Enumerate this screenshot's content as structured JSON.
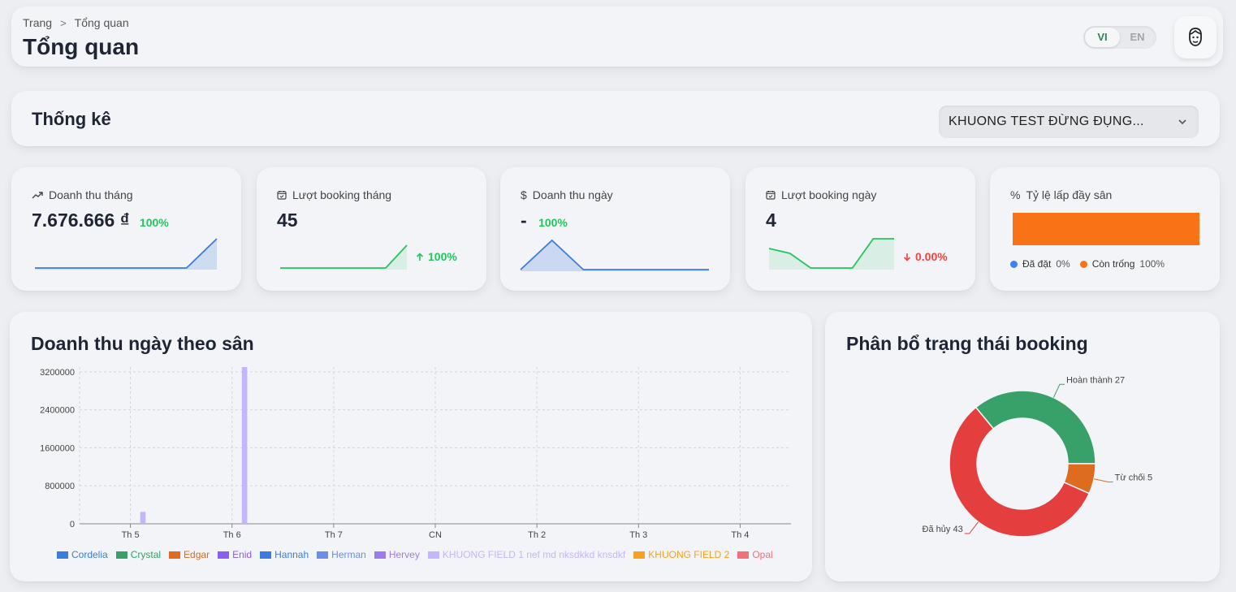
{
  "header": {
    "breadcrumb": [
      "Trang",
      "Tổng quan"
    ],
    "title": "Tổng quan",
    "lang": {
      "vi": "VI",
      "en": "EN",
      "active": "VI"
    }
  },
  "stats": {
    "title": "Thống kê",
    "field_select": "KHUONG TEST ĐỪNG ĐỤNG..."
  },
  "kpis": {
    "month_revenue": {
      "label": "Doanh thu tháng",
      "value": "7.676.666 ₫",
      "pct": "100%",
      "trend": [
        0,
        0,
        0,
        0,
        0,
        0,
        1
      ]
    },
    "month_bookings": {
      "label": "Lượt booking tháng",
      "value": "45",
      "pct": "100%",
      "trend": [
        0,
        0,
        0,
        0,
        0,
        0,
        1
      ]
    },
    "day_revenue": {
      "label": "Doanh thu ngày",
      "value": "-",
      "pct": "100%",
      "trend": [
        0,
        1,
        0,
        0,
        0,
        0,
        0
      ]
    },
    "day_bookings": {
      "label": "Lượt booking ngày",
      "value": "4",
      "pct": "0.00%",
      "trend": [
        2,
        1.5,
        0,
        0,
        0,
        3,
        3
      ]
    },
    "occupancy": {
      "label": "Tỷ lệ lấp đầy sân",
      "booked_label": "Đã đặt",
      "booked_value": "0%",
      "free_label": "Còn trống",
      "free_value": "100%",
      "booked_fraction": 0,
      "colors": {
        "booked": "#3b82f6",
        "free": "#f97316"
      }
    }
  },
  "chart_data": [
    {
      "type": "bar",
      "title": "Doanh thu ngày theo sân",
      "categories": [
        "Th 5",
        "Th 6",
        "Th 7",
        "CN",
        "Th 2",
        "Th 3",
        "Th 4"
      ],
      "ylim": [
        0,
        3300000
      ],
      "yticks": [
        "0",
        "800000",
        "1600000",
        "2400000",
        "3200000"
      ],
      "grid": true,
      "legend_position": "bottom",
      "series": [
        {
          "name": "Cordelia",
          "color": "#3b7ddd",
          "values": [
            0,
            0,
            0,
            0,
            0,
            0,
            0
          ]
        },
        {
          "name": "Crystal",
          "color": "#38a169",
          "values": [
            0,
            0,
            0,
            0,
            0,
            0,
            0
          ]
        },
        {
          "name": "Edgar",
          "color": "#dd6b20",
          "values": [
            0,
            0,
            0,
            0,
            0,
            0,
            0
          ]
        },
        {
          "name": "Enid",
          "color": "#8b5cf6",
          "values": [
            0,
            0,
            0,
            0,
            0,
            0,
            0
          ]
        },
        {
          "name": "Hannah",
          "color": "#3b7ddd",
          "values": [
            0,
            0,
            0,
            0,
            0,
            0,
            0
          ]
        },
        {
          "name": "Herman",
          "color": "#6b8fe6",
          "values": [
            0,
            0,
            0,
            0,
            0,
            0,
            0
          ]
        },
        {
          "name": "Hervey",
          "color": "#9f7aea",
          "values": [
            0,
            0,
            0,
            0,
            0,
            0,
            0
          ]
        },
        {
          "name": "KHUONG FIELD 1 nef md nksdkkd knsdkf",
          "color": "#c4b5fd",
          "values": [
            250000,
            3300000,
            0,
            0,
            0,
            0,
            0
          ]
        },
        {
          "name": "KHUONG FIELD 2",
          "color": "#f6a21e",
          "values": [
            0,
            0,
            0,
            0,
            0,
            0,
            0
          ]
        },
        {
          "name": "Opal",
          "color": "#f07178",
          "values": [
            0,
            0,
            0,
            0,
            0,
            0,
            0
          ]
        }
      ]
    },
    {
      "type": "pie",
      "title": "Phân bổ trạng thái booking",
      "slices": [
        {
          "label": "Hoàn thành",
          "value": 27,
          "color": "#38a169",
          "text": "Hoàn thành 27"
        },
        {
          "label": "Đã hủy",
          "value": 43,
          "color": "#e53e3e",
          "text": "Đã hủy 43"
        },
        {
          "label": "Từ chối",
          "value": 5,
          "color": "#dd6b20",
          "text": "Từ chối 5"
        }
      ]
    }
  ]
}
